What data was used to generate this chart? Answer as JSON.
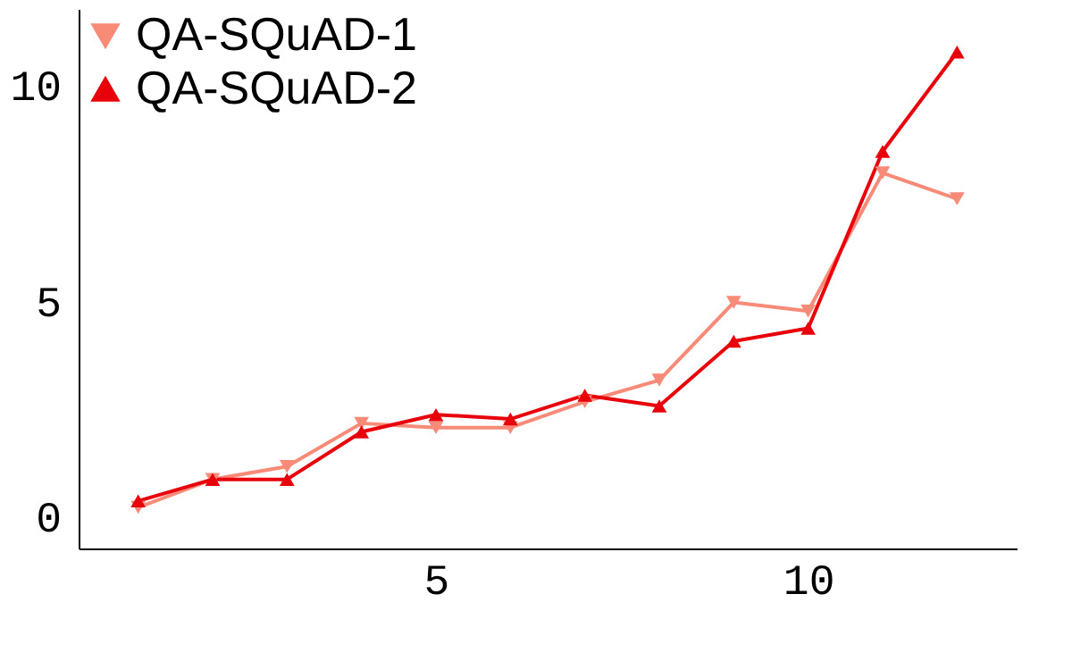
{
  "chart_data": {
    "type": "line",
    "x": [
      1,
      2,
      3,
      4,
      5,
      6,
      7,
      8,
      9,
      10,
      11,
      12
    ],
    "series": [
      {
        "name": "QA-SQuAD-1",
        "color": "#f88a78",
        "marker": "triangle-down",
        "values": [
          0.25,
          0.9,
          1.2,
          2.2,
          2.1,
          2.1,
          2.7,
          3.2,
          5.0,
          4.8,
          8.0,
          7.4
        ]
      },
      {
        "name": "QA-SQuAD-2",
        "color": "#e8000b",
        "marker": "triangle-up",
        "values": [
          0.4,
          0.9,
          0.9,
          2.0,
          2.4,
          2.3,
          2.85,
          2.6,
          4.1,
          4.4,
          8.5,
          10.8
        ]
      }
    ],
    "xlim": [
      0.2,
      12.8
    ],
    "xticks": [
      5,
      10
    ],
    "ylim": [
      -0.7,
      11.8
    ],
    "yticks": [
      0,
      5,
      10
    ],
    "grid": false,
    "legend": "top left",
    "line_style": "solid"
  }
}
